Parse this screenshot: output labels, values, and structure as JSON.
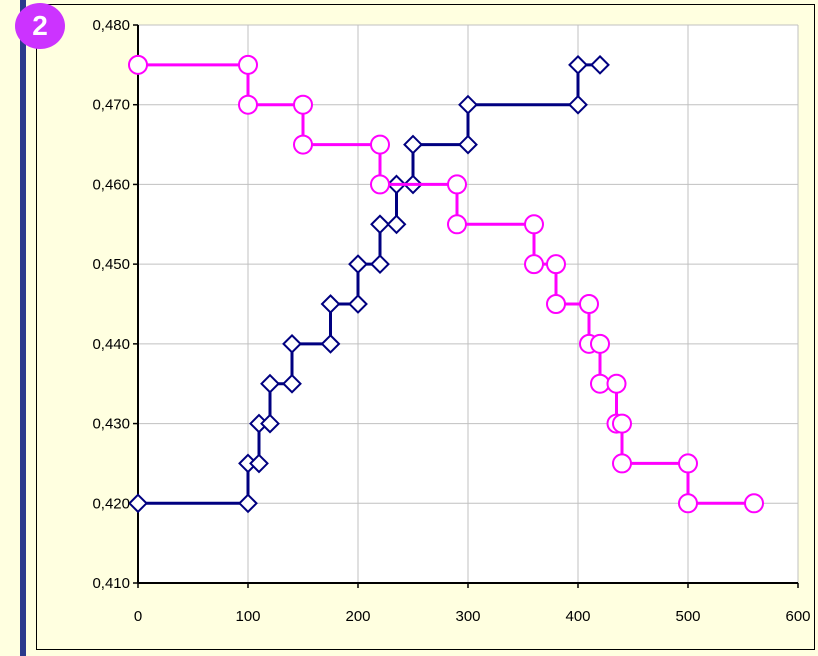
{
  "badge": {
    "label": "2"
  },
  "colors": {
    "background": "#ffffe0",
    "plot_area": "#ffffff",
    "grid": "#c0c0c0",
    "left_bar": "#2b3a8c",
    "badge": "#cc33ff",
    "series_dark": "#000080",
    "series_pink": "#ff00ff"
  },
  "chart_data": {
    "type": "line",
    "title": "",
    "xlabel": "",
    "ylabel": "",
    "xlim": [
      0,
      600
    ],
    "ylim": [
      0.41,
      0.48
    ],
    "grid": true,
    "legend": "none",
    "x_ticks": [
      0,
      100,
      200,
      300,
      400,
      500,
      600
    ],
    "x_tick_labels": [
      "0",
      "100",
      "200",
      "300",
      "400",
      "500",
      "600"
    ],
    "y_ticks": [
      0.41,
      0.42,
      0.43,
      0.44,
      0.45,
      0.46,
      0.47,
      0.48
    ],
    "y_tick_labels": [
      "0,410",
      "0,420",
      "0,430",
      "0,440",
      "0,450",
      "0,460",
      "0,470",
      "0,480"
    ],
    "series": [
      {
        "marker": "diamond",
        "color": "#000080",
        "points": [
          [
            0,
            0.42
          ],
          [
            100,
            0.42
          ],
          [
            100,
            0.425
          ],
          [
            110,
            0.425
          ],
          [
            110,
            0.43
          ],
          [
            120,
            0.43
          ],
          [
            120,
            0.435
          ],
          [
            140,
            0.435
          ],
          [
            140,
            0.44
          ],
          [
            175,
            0.44
          ],
          [
            175,
            0.445
          ],
          [
            200,
            0.445
          ],
          [
            200,
            0.45
          ],
          [
            220,
            0.45
          ],
          [
            220,
            0.455
          ],
          [
            235,
            0.455
          ],
          [
            235,
            0.46
          ],
          [
            250,
            0.46
          ],
          [
            250,
            0.465
          ],
          [
            300,
            0.465
          ],
          [
            300,
            0.47
          ],
          [
            400,
            0.47
          ],
          [
            400,
            0.475
          ],
          [
            420,
            0.475
          ]
        ]
      },
      {
        "marker": "circle",
        "color": "#ff00ff",
        "points": [
          [
            0,
            0.475
          ],
          [
            100,
            0.475
          ],
          [
            100,
            0.47
          ],
          [
            150,
            0.47
          ],
          [
            150,
            0.465
          ],
          [
            220,
            0.465
          ],
          [
            220,
            0.46
          ],
          [
            290,
            0.46
          ],
          [
            290,
            0.455
          ],
          [
            360,
            0.455
          ],
          [
            360,
            0.45
          ],
          [
            380,
            0.45
          ],
          [
            380,
            0.445
          ],
          [
            410,
            0.445
          ],
          [
            410,
            0.44
          ],
          [
            420,
            0.44
          ],
          [
            420,
            0.435
          ],
          [
            435,
            0.435
          ],
          [
            435,
            0.43
          ],
          [
            440,
            0.43
          ],
          [
            440,
            0.425
          ],
          [
            500,
            0.425
          ],
          [
            500,
            0.42
          ],
          [
            560,
            0.42
          ]
        ]
      }
    ]
  }
}
